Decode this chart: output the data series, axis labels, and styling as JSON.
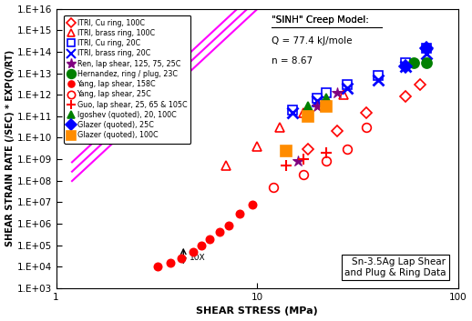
{
  "title": "Sn-3.5Ag Lap Shear\nand Plug & Ring Data",
  "xlabel": "SHEAR STRESS (MPa)",
  "ylabel": "SHEAR STRAIN RATE (/SEC) * EXP(Q/RT)",
  "xlim": [
    1,
    100
  ],
  "ylim": [
    1000.0,
    1e+16
  ],
  "sinh_annotation_line1": "\"SINH\" Creep Model:",
  "sinh_annotation_line2": "Q = 77.4 kJ/mole",
  "sinh_annotation_line3": "n = 8.67",
  "model_lines": {
    "color": "#FF00FF",
    "n": 8.67,
    "A_values": [
      20000000.0,
      55000000.0,
      150000000.0
    ]
  },
  "datasets": [
    {
      "label": "ITRI, Cu ring, 100C",
      "color": "#FF0000",
      "marker": "D",
      "fillstyle": "none",
      "markersize": 6,
      "x": [
        18,
        25,
        35,
        55,
        65
      ],
      "y": [
        3000000000.0,
        20000000000.0,
        150000000000.0,
        800000000000.0,
        3000000000000.0
      ]
    },
    {
      "label": "ITRI, brass ring, 100C",
      "color": "#FF0000",
      "marker": "^",
      "fillstyle": "none",
      "markersize": 7,
      "x": [
        7,
        10,
        13,
        17,
        22,
        27
      ],
      "y": [
        500000000.0,
        4000000000.0,
        30000000000.0,
        150000000000.0,
        300000000000.0,
        1000000000000.0
      ]
    },
    {
      "label": "ITRI, Cu ring, 20C",
      "color": "#0000FF",
      "marker": "s",
      "fillstyle": "none",
      "markersize": 7,
      "x": [
        15,
        20,
        22,
        28,
        40,
        55,
        70
      ],
      "y": [
        200000000000.0,
        700000000000.0,
        1200000000000.0,
        3000000000000.0,
        8000000000000.0,
        30000000000000.0,
        150000000000000.0
      ]
    },
    {
      "label": "ITRI, brass ring, 20C",
      "color": "#0000FF",
      "marker": "x",
      "fillstyle": "full",
      "markersize": 8,
      "x": [
        15,
        20,
        28,
        40,
        55,
        70
      ],
      "y": [
        150000000000.0,
        500000000000.0,
        2000000000000.0,
        5000000000000.0,
        20000000000000.0,
        80000000000000.0
      ]
    },
    {
      "label": "Ren, lap shear, 125, 75, 25C",
      "color": "#800080",
      "marker": "*",
      "fillstyle": "full",
      "markersize": 9,
      "x": [
        16,
        20,
        25
      ],
      "y": [
        800000000.0,
        300000000000.0,
        1200000000000.0
      ]
    },
    {
      "label": "Hernandez, ring / plug, 23C",
      "color": "#008000",
      "marker": "o",
      "fillstyle": "full",
      "markersize": 8,
      "x": [
        60,
        70
      ],
      "y": [
        30000000000000.0,
        30000000000000.0
      ]
    },
    {
      "label": "Yang, lap shear, 158C",
      "color": "#FF0000",
      "marker": "o",
      "fillstyle": "full",
      "markersize": 6,
      "x": [
        3.2,
        3.7,
        4.2,
        4.8,
        5.3,
        5.8,
        6.5,
        7.2,
        8.2,
        9.5
      ],
      "y": [
        10000.0,
        15000.0,
        25000.0,
        50000.0,
        100000.0,
        200000.0,
        400000.0,
        800000.0,
        3000000.0,
        8000000.0
      ]
    },
    {
      "label": "Yang, lap shear, 25C",
      "color": "#FF0000",
      "marker": "o",
      "fillstyle": "none",
      "markersize": 7,
      "x": [
        12,
        17,
        22,
        28,
        35
      ],
      "y": [
        50000000.0,
        200000000.0,
        800000000.0,
        3000000000.0,
        30000000000.0
      ]
    },
    {
      "label": "Guo, lap shear, 25, 65 & 105C",
      "color": "#FF0000",
      "marker": "+",
      "fillstyle": "full",
      "markersize": 8,
      "x": [
        14,
        17,
        22
      ],
      "y": [
        500000000.0,
        1000000000.0,
        2000000000.0
      ]
    },
    {
      "label": "Igoshev (quoted), 20, 100C",
      "color": "#008000",
      "marker": "^",
      "fillstyle": "full",
      "markersize": 7,
      "x": [
        18,
        22
      ],
      "y": [
        300000000000.0,
        700000000000.0
      ]
    },
    {
      "label": "Glazer (quoted), 25C",
      "color": "#0000FF",
      "marker": "D",
      "fillstyle": "full",
      "markersize": 7,
      "x": [
        55,
        70
      ],
      "y": [
        20000000000000.0,
        150000000000000.0
      ]
    },
    {
      "label": "Glazer (quoted), 100C",
      "color": "#FF8C00",
      "marker": "s",
      "fillstyle": "full",
      "markersize": 8,
      "x": [
        14,
        18,
        22
      ],
      "y": [
        2500000000.0,
        100000000000.0,
        300000000000.0
      ]
    }
  ]
}
